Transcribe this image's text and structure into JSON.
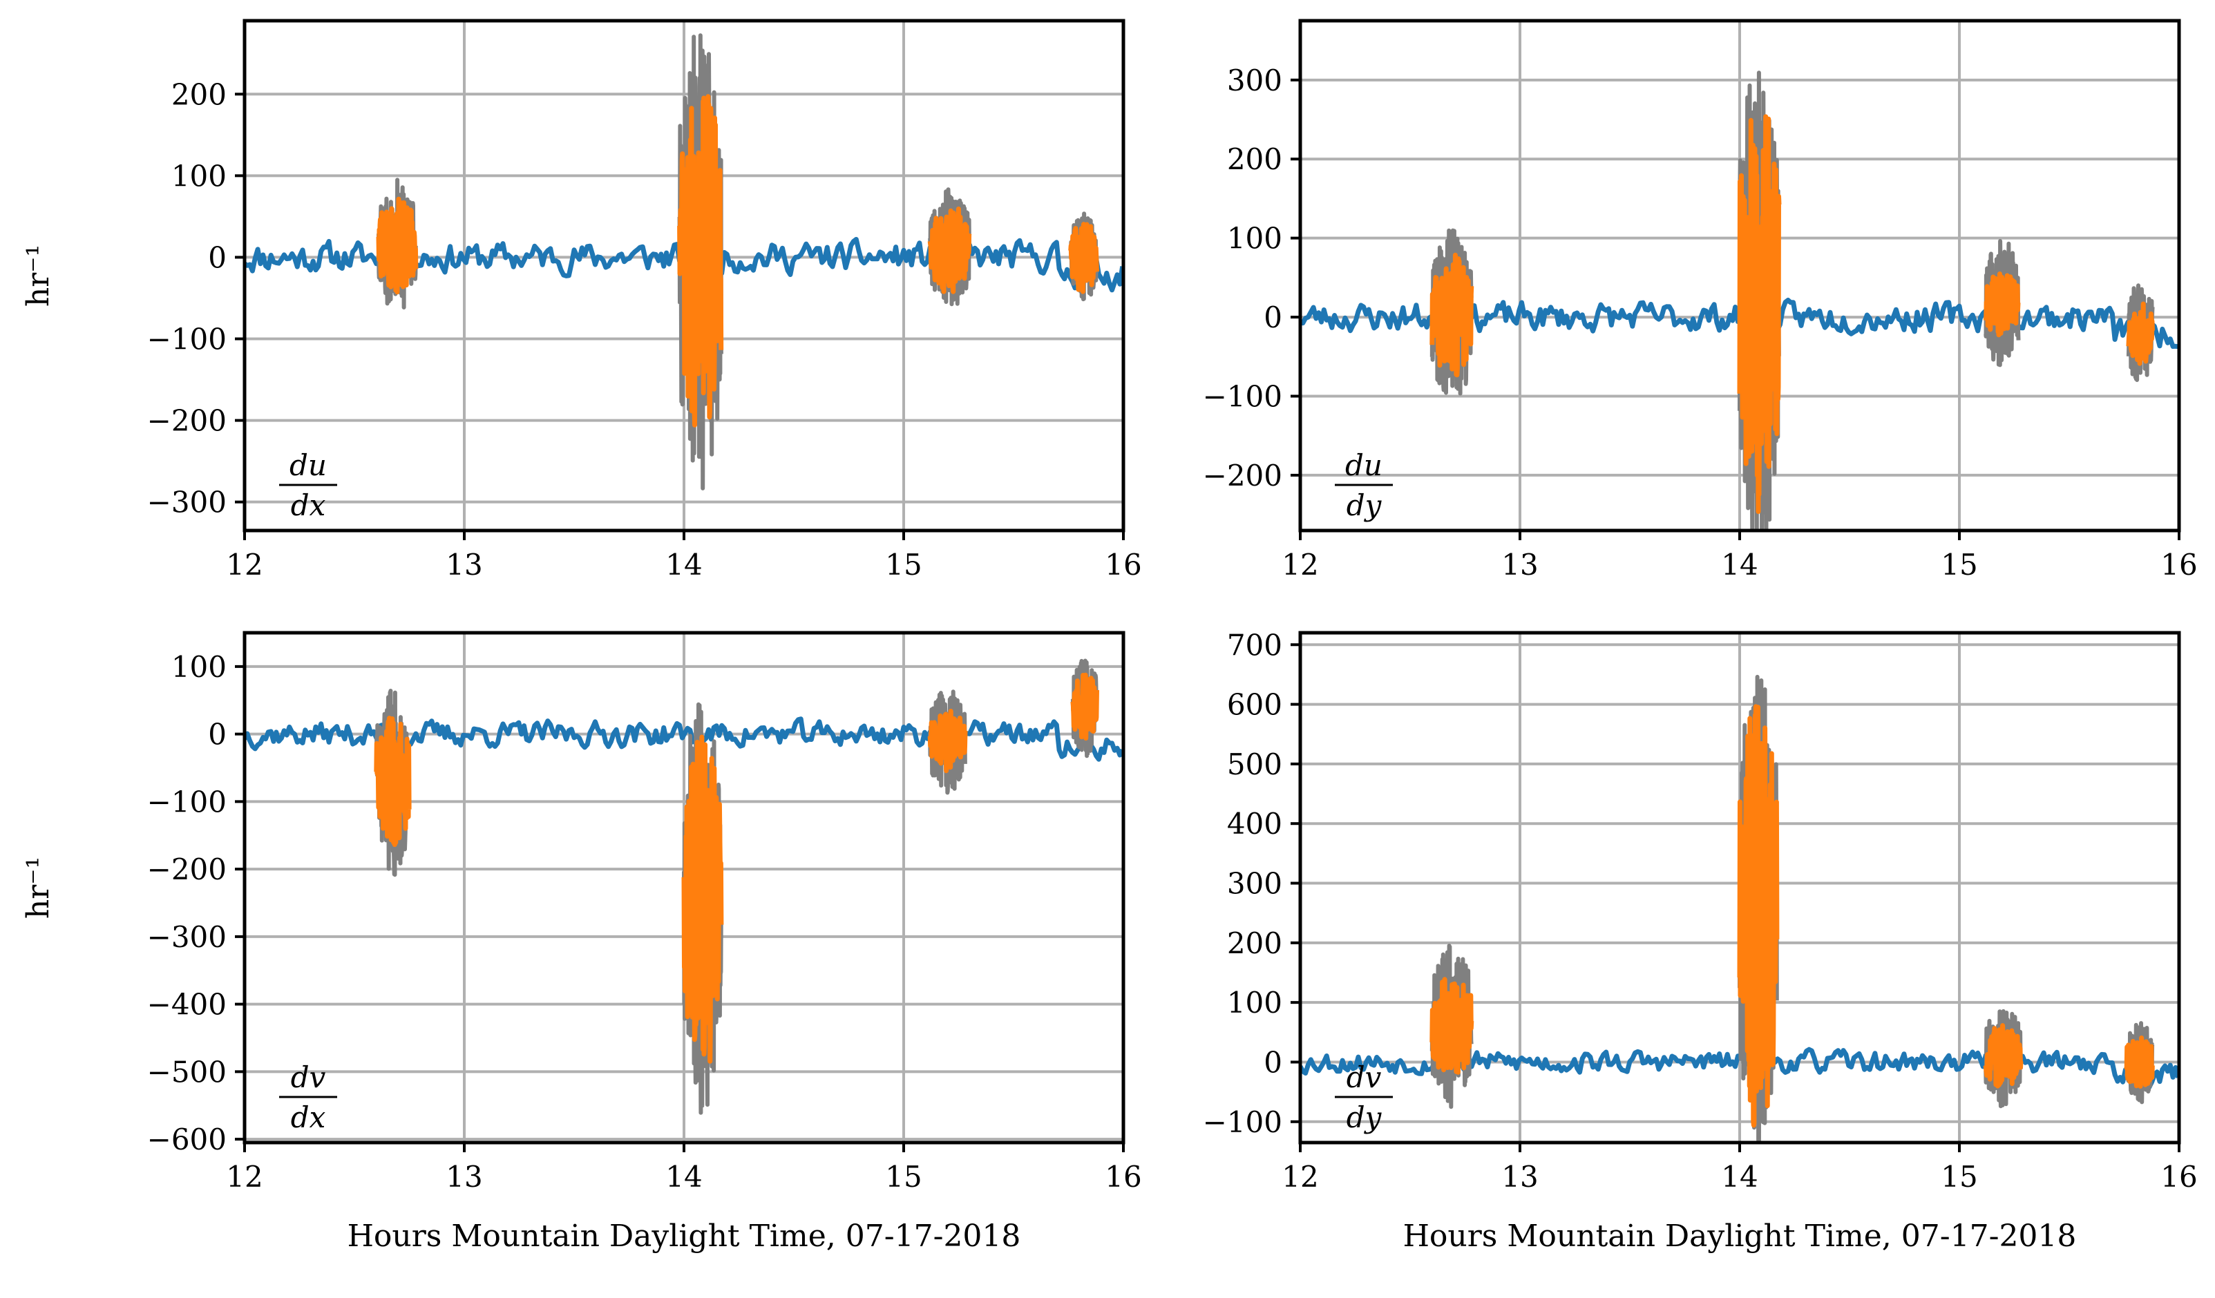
{
  "chart_data": [
    {
      "type": "line",
      "panel": "top-left",
      "annotation": {
        "num": "du",
        "den": "dx"
      },
      "ylabel": "hr⁻¹",
      "xlabel": "",
      "xlim": [
        12,
        16
      ],
      "ylim": [
        -335,
        290
      ],
      "xticks": [
        "12",
        "13",
        "14",
        "15",
        "16"
      ],
      "yticks": [
        200,
        100,
        0,
        -100,
        -200,
        -300
      ],
      "ytick_labels": [
        "200",
        "100",
        "0",
        "−100",
        "−200",
        "−300"
      ],
      "colors": {
        "baseline": "#1f77b4",
        "raw": "#808080",
        "filtered": "#ff7f0e"
      },
      "bursts": [
        {
          "start": 12.61,
          "end": 12.78,
          "center": 15,
          "raw_amp": 85,
          "filt_amp": 60
        },
        {
          "start": 13.98,
          "end": 14.17,
          "center": 0,
          "raw_amp": 290,
          "filt_amp": 225
        },
        {
          "start": 15.12,
          "end": 15.3,
          "center": 10,
          "raw_amp": 75,
          "filt_amp": 55
        },
        {
          "start": 15.76,
          "end": 15.88,
          "center": 0,
          "raw_amp": 55,
          "filt_amp": 45
        }
      ],
      "baseline": {
        "amp": 15,
        "seed": 11
      }
    },
    {
      "type": "line",
      "panel": "top-right",
      "annotation": {
        "num": "du",
        "den": "dy"
      },
      "ylabel": "",
      "xlabel": "",
      "xlim": [
        12,
        16
      ],
      "ylim": [
        -270,
        375
      ],
      "xticks": [
        "12",
        "13",
        "14",
        "15",
        "16"
      ],
      "yticks": [
        300,
        200,
        100,
        0,
        -100,
        -200
      ],
      "ytick_labels": [
        "300",
        "200",
        "100",
        "0",
        "−100",
        "−200"
      ],
      "colors": {
        "baseline": "#1f77b4",
        "raw": "#808080",
        "filtered": "#ff7f0e"
      },
      "bursts": [
        {
          "start": 12.6,
          "end": 12.78,
          "center": 0,
          "raw_amp": 115,
          "filt_amp": 80
        },
        {
          "start": 14.0,
          "end": 14.18,
          "center": 20,
          "raw_amp": 320,
          "filt_amp": 270
        },
        {
          "start": 15.12,
          "end": 15.27,
          "center": 15,
          "raw_amp": 85,
          "filt_amp": 45
        },
        {
          "start": 15.77,
          "end": 15.88,
          "center": -20,
          "raw_amp": 70,
          "filt_amp": 40
        }
      ],
      "baseline": {
        "amp": 15,
        "seed": 23
      }
    },
    {
      "type": "line",
      "panel": "bottom-left",
      "annotation": {
        "num": "dv",
        "den": "dx"
      },
      "ylabel": "hr⁻¹",
      "xlabel": "Hours Mountain Daylight Time, 07-17-2018",
      "xlim": [
        12,
        16
      ],
      "ylim": [
        -605,
        150
      ],
      "xticks": [
        "12",
        "13",
        "14",
        "15",
        "16"
      ],
      "yticks": [
        100,
        0,
        -100,
        -200,
        -300,
        -400,
        -500,
        -600
      ],
      "ytick_labels": [
        "100",
        "0",
        "−100",
        "−200",
        "−300",
        "−400",
        "−500",
        "−600"
      ],
      "colors": {
        "baseline": "#1f77b4",
        "raw": "#808080",
        "filtered": "#ff7f0e"
      },
      "bursts": [
        {
          "start": 12.6,
          "end": 12.75,
          "center": -70,
          "raw_amp": 140,
          "filt_amp": 100
        },
        {
          "start": 14.0,
          "end": 14.17,
          "center": -250,
          "raw_amp": 320,
          "filt_amp": 260
        },
        {
          "start": 15.12,
          "end": 15.28,
          "center": -10,
          "raw_amp": 80,
          "filt_amp": 45
        },
        {
          "start": 15.77,
          "end": 15.88,
          "center": 40,
          "raw_amp": 75,
          "filt_amp": 50
        }
      ],
      "baseline": {
        "amp": 15,
        "seed": 37
      }
    },
    {
      "type": "line",
      "panel": "bottom-right",
      "annotation": {
        "num": "dv",
        "den": "dy"
      },
      "ylabel": "",
      "xlabel": "Hours Mountain Daylight Time, 07-17-2018",
      "xlim": [
        12,
        16
      ],
      "ylim": [
        -135,
        720
      ],
      "xticks": [
        "12",
        "13",
        "14",
        "15",
        "16"
      ],
      "yticks": [
        700,
        600,
        500,
        400,
        300,
        200,
        100,
        0,
        -100
      ],
      "ytick_labels": [
        "700",
        "600",
        "500",
        "400",
        "300",
        "200",
        "100",
        "0",
        "−100"
      ],
      "colors": {
        "baseline": "#1f77b4",
        "raw": "#808080",
        "filtered": "#ff7f0e"
      },
      "bursts": [
        {
          "start": 12.6,
          "end": 12.78,
          "center": 60,
          "raw_amp": 140,
          "filt_amp": 90
        },
        {
          "start": 14.0,
          "end": 14.17,
          "center": 250,
          "raw_amp": 430,
          "filt_amp": 370
        },
        {
          "start": 15.12,
          "end": 15.28,
          "center": 10,
          "raw_amp": 85,
          "filt_amp": 55
        },
        {
          "start": 15.76,
          "end": 15.88,
          "center": 0,
          "raw_amp": 70,
          "filt_amp": 45
        }
      ],
      "baseline": {
        "amp": 15,
        "seed": 53
      }
    }
  ]
}
